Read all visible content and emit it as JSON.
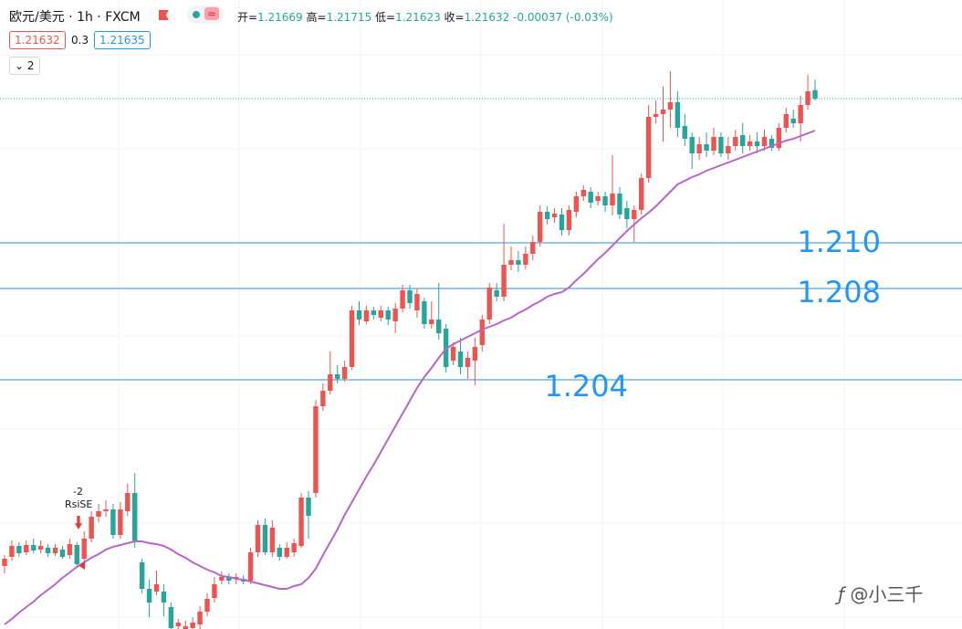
{
  "header": {
    "symbol": "欧元/美元 · 1h · FXCM",
    "approx": "≈",
    "open_label": "开=",
    "high_label": "高=",
    "low_label": "低=",
    "close_label": "收=",
    "change": "-0.00037",
    "change_pct": "(-0.03%)",
    "bid": "1.21632",
    "spread": "0.3",
    "ask": "1.21635",
    "indicators": "2"
  },
  "signal": {
    "count": "-2",
    "name": "RsiSE"
  },
  "watermark": "@小三千",
  "chart_data": {
    "type": "candlestick",
    "up_color": "#ef5350",
    "down_color": "#26a69a",
    "ylim": [
      1.19308,
      1.22064
    ],
    "candles": [
      [
        1.19584,
        1.19632,
        1.19552,
        1.19616
      ],
      [
        1.19624,
        1.19696,
        1.19608,
        1.19672
      ],
      [
        1.19672,
        1.19688,
        1.19624,
        1.1964
      ],
      [
        1.19644,
        1.19696,
        1.19632,
        1.19676
      ],
      [
        1.19676,
        1.19704,
        1.1964,
        1.19652
      ],
      [
        1.19656,
        1.19696,
        1.1964,
        1.19672
      ],
      [
        1.19664,
        1.1968,
        1.19624,
        1.1964
      ],
      [
        1.1964,
        1.1968,
        1.19628,
        1.19664
      ],
      [
        1.19656,
        1.19672,
        1.19616,
        1.19624
      ],
      [
        1.19632,
        1.19704,
        1.19616,
        1.1968
      ],
      [
        1.19676,
        1.19688,
        1.19576,
        1.19592
      ],
      [
        1.19616,
        1.19736,
        1.19592,
        1.19704
      ],
      [
        1.19704,
        1.19824,
        1.19688,
        1.198
      ],
      [
        1.198,
        1.19856,
        1.19776,
        1.19824
      ],
      [
        1.19824,
        1.19872,
        1.198,
        1.19832
      ],
      [
        1.19832,
        1.19856,
        1.19704,
        1.1972
      ],
      [
        1.1972,
        1.19864,
        1.19704,
        1.19832
      ],
      [
        1.19824,
        1.19944,
        1.19804,
        1.19904
      ],
      [
        1.19904,
        1.19992,
        1.19664,
        1.19688
      ],
      [
        1.196,
        1.19616,
        1.19464,
        1.19484
      ],
      [
        1.19484,
        1.19524,
        1.1936,
        1.19424
      ],
      [
        1.19472,
        1.19564,
        1.19456,
        1.19504
      ],
      [
        1.19472,
        1.19504,
        1.19364,
        1.19424
      ],
      [
        1.19404,
        1.19424,
        1.19308,
        1.19312
      ],
      [
        1.1932,
        1.19352,
        1.19308,
        1.19336
      ],
      [
        1.19308,
        1.19344,
        1.19308,
        1.1932
      ],
      [
        1.19312,
        1.1936,
        1.19308,
        1.19336
      ],
      [
        1.19328,
        1.19408,
        1.19308,
        1.19384
      ],
      [
        1.19384,
        1.19464,
        1.19364,
        1.1944
      ],
      [
        1.19444,
        1.19536,
        1.19424,
        1.19504
      ],
      [
        1.1952,
        1.1956,
        1.19504,
        1.19536
      ],
      [
        1.19536,
        1.19552,
        1.19504,
        1.1952
      ],
      [
        1.19528,
        1.19552,
        1.19504,
        1.19536
      ],
      [
        1.19528,
        1.19544,
        1.19504,
        1.19516
      ],
      [
        1.1952,
        1.19664,
        1.19504,
        1.19644
      ],
      [
        1.19644,
        1.19784,
        1.19624,
        1.19764
      ],
      [
        1.19764,
        1.19792,
        1.19632,
        1.19644
      ],
      [
        1.19644,
        1.19784,
        1.19624,
        1.19752
      ],
      [
        1.19664,
        1.1968,
        1.19608,
        1.19624
      ],
      [
        1.19624,
        1.19688,
        1.19616,
        1.19664
      ],
      [
        1.19644,
        1.19704,
        1.19624,
        1.19684
      ],
      [
        1.19672,
        1.19904,
        1.19664,
        1.19884
      ],
      [
        1.19884,
        1.19912,
        1.19704,
        1.19804
      ],
      [
        1.19904,
        1.20312,
        1.19884,
        1.20284
      ],
      [
        1.20284,
        1.20384,
        1.20264,
        1.20352
      ],
      [
        1.20352,
        1.20524,
        1.20336,
        1.20424
      ],
      [
        1.20424,
        1.20464,
        1.20384,
        1.20404
      ],
      [
        1.20404,
        1.20484,
        1.20392,
        1.20456
      ],
      [
        1.20456,
        1.20724,
        1.20444,
        1.20704
      ],
      [
        1.20704,
        1.20744,
        1.2064,
        1.20664
      ],
      [
        1.20656,
        1.20724,
        1.20644,
        1.20704
      ],
      [
        1.20704,
        1.2072,
        1.20664,
        1.20684
      ],
      [
        1.20672,
        1.20724,
        1.20656,
        1.20704
      ],
      [
        1.20704,
        1.2072,
        1.2064,
        1.20664
      ],
      [
        1.20656,
        1.20736,
        1.20604,
        1.20712
      ],
      [
        1.20712,
        1.20816,
        1.20696,
        1.20792
      ],
      [
        1.20792,
        1.20816,
        1.20712,
        1.20736
      ],
      [
        1.20704,
        1.208,
        1.20672,
        1.20776
      ],
      [
        1.20744,
        1.2076,
        1.20624,
        1.20644
      ],
      [
        1.20644,
        1.20744,
        1.20624,
        1.20664
      ],
      [
        1.20664,
        1.20824,
        1.20576,
        1.20604
      ],
      [
        1.20624,
        1.20644,
        1.20432,
        1.20456
      ],
      [
        1.20484,
        1.20564,
        1.20464,
        1.20544
      ],
      [
        1.20524,
        1.20584,
        1.20424,
        1.20456
      ],
      [
        1.20456,
        1.20524,
        1.20404,
        1.20496
      ],
      [
        1.20484,
        1.20584,
        1.20376,
        1.20544
      ],
      [
        1.20552,
        1.20684,
        1.20524,
        1.20664
      ],
      [
        1.20664,
        1.20824,
        1.20644,
        1.20804
      ],
      [
        1.20792,
        1.20824,
        1.20744,
        1.20764
      ],
      [
        1.20764,
        1.21084,
        1.20744,
        1.20904
      ],
      [
        1.20904,
        1.20984,
        1.2088,
        1.20924
      ],
      [
        1.20924,
        1.20964,
        1.20872,
        1.20904
      ],
      [
        1.20904,
        1.20984,
        1.20884,
        1.20952
      ],
      [
        1.20952,
        1.21032,
        1.20924,
        1.21004
      ],
      [
        1.21004,
        1.21164,
        1.20984,
        1.21136
      ],
      [
        1.21136,
        1.2116,
        1.2108,
        1.21104
      ],
      [
        1.21112,
        1.21152,
        1.21088,
        1.21128
      ],
      [
        1.21124,
        1.21152,
        1.21032,
        1.21056
      ],
      [
        1.21056,
        1.21164,
        1.21032,
        1.21144
      ],
      [
        1.21136,
        1.21224,
        1.21112,
        1.21204
      ],
      [
        1.21204,
        1.21252,
        1.21184,
        1.21232
      ],
      [
        1.21224,
        1.21244,
        1.21152,
        1.21176
      ],
      [
        1.21184,
        1.21224,
        1.21164,
        1.21204
      ],
      [
        1.21204,
        1.21224,
        1.21136,
        1.21164
      ],
      [
        1.21164,
        1.21384,
        1.2112,
        1.21216
      ],
      [
        1.21216,
        1.21244,
        1.21104,
        1.21124
      ],
      [
        1.21152,
        1.21184,
        1.21064,
        1.21104
      ],
      [
        1.21104,
        1.21164,
        1.21004,
        1.21144
      ],
      [
        1.21144,
        1.21304,
        1.21124,
        1.21284
      ],
      [
        1.21284,
        1.21604,
        1.21264,
        1.21552
      ],
      [
        1.21552,
        1.21624,
        1.21524,
        1.21564
      ],
      [
        1.21564,
        1.21684,
        1.21444,
        1.21584
      ],
      [
        1.21584,
        1.21752,
        1.21504,
        1.21616
      ],
      [
        1.21616,
        1.21664,
        1.21464,
        1.21504
      ],
      [
        1.21512,
        1.21564,
        1.21424,
        1.21456
      ],
      [
        1.21464,
        1.21484,
        1.21324,
        1.21392
      ],
      [
        1.21392,
        1.21464,
        1.21364,
        1.21432
      ],
      [
        1.21432,
        1.21484,
        1.21376,
        1.21404
      ],
      [
        1.21404,
        1.21504,
        1.21384,
        1.21464
      ],
      [
        1.21464,
        1.21484,
        1.21376,
        1.21392
      ],
      [
        1.21392,
        1.21464,
        1.21364,
        1.21424
      ],
      [
        1.21424,
        1.21496,
        1.21404,
        1.21464
      ],
      [
        1.21472,
        1.21524,
        1.21392,
        1.21424
      ],
      [
        1.21424,
        1.21472,
        1.21404,
        1.21444
      ],
      [
        1.21444,
        1.21484,
        1.21392,
        1.21424
      ],
      [
        1.21424,
        1.21496,
        1.21404,
        1.21464
      ],
      [
        1.21456,
        1.21472,
        1.21404,
        1.21416
      ],
      [
        1.21416,
        1.21524,
        1.21404,
        1.21504
      ],
      [
        1.21504,
        1.21592,
        1.21484,
        1.21564
      ],
      [
        1.21544,
        1.21584,
        1.21504,
        1.21524
      ],
      [
        1.21524,
        1.21644,
        1.21444,
        1.21604
      ],
      [
        1.21604,
        1.21736,
        1.21584,
        1.21664
      ],
      [
        1.21669,
        1.21715,
        1.21623,
        1.21632
      ]
    ],
    "ma": {
      "color": "#b865c8",
      "values": [
        1.19328,
        1.19352,
        1.1938,
        1.19404,
        1.19428,
        1.19456,
        1.1948,
        1.19504,
        1.19532,
        1.19556,
        1.1958,
        1.196,
        1.1962,
        1.19636,
        1.19656,
        1.19668,
        1.19676,
        1.19684,
        1.19692,
        1.19692,
        1.19684,
        1.1968,
        1.19672,
        1.19656,
        1.19636,
        1.1962,
        1.196,
        1.19584,
        1.19568,
        1.19556,
        1.1954,
        1.19536,
        1.19528,
        1.19524,
        1.19516,
        1.19508,
        1.195,
        1.19492,
        1.19484,
        1.19484,
        1.19496,
        1.19504,
        1.19532,
        1.19572,
        1.19632,
        1.19688,
        1.19744,
        1.19808,
        1.19864,
        1.1992,
        1.19976,
        1.20028,
        1.20084,
        1.2014,
        1.20196,
        1.20252,
        1.20308,
        1.20364,
        1.20412,
        1.20452,
        1.20496,
        1.20536,
        1.20556,
        1.20572,
        1.20588,
        1.20604,
        1.2062,
        1.20632,
        1.20644,
        1.2066,
        1.20672,
        1.20692,
        1.20708,
        1.20728,
        1.20744,
        1.20764,
        1.20776,
        1.20784,
        1.20804,
        1.20836,
        1.20864,
        1.20896,
        1.20928,
        1.20956,
        1.20988,
        1.2102,
        1.21052,
        1.2108,
        1.21108,
        1.21132,
        1.2116,
        1.21192,
        1.21224,
        1.21256,
        1.21272,
        1.21288,
        1.213,
        1.21316,
        1.21328,
        1.2134,
        1.21352,
        1.21364,
        1.21376,
        1.21388,
        1.214,
        1.21412,
        1.21424,
        1.21436,
        1.21448,
        1.21456,
        1.21468,
        1.2148,
        1.21492
      ]
    },
    "levels": [
      {
        "value": 1.21,
        "label": "1.210"
      },
      {
        "value": 1.208,
        "label": "1.208"
      },
      {
        "value": 1.204,
        "label": "1.204"
      }
    ],
    "level_color": "#2a8fd1"
  }
}
